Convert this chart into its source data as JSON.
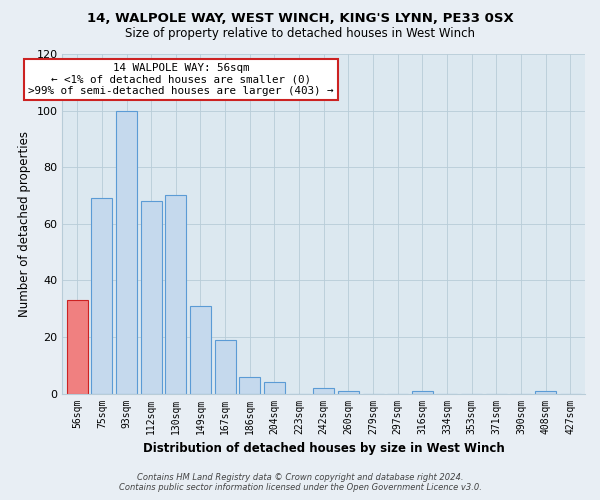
{
  "title_line1": "14, WALPOLE WAY, WEST WINCH, KING'S LYNN, PE33 0SX",
  "title_line2": "Size of property relative to detached houses in West Winch",
  "xlabel": "Distribution of detached houses by size in West Winch",
  "ylabel": "Number of detached properties",
  "bar_labels": [
    "56sqm",
    "75sqm",
    "93sqm",
    "112sqm",
    "130sqm",
    "149sqm",
    "167sqm",
    "186sqm",
    "204sqm",
    "223sqm",
    "242sqm",
    "260sqm",
    "279sqm",
    "297sqm",
    "316sqm",
    "334sqm",
    "353sqm",
    "371sqm",
    "390sqm",
    "408sqm",
    "427sqm"
  ],
  "bar_values": [
    33,
    69,
    100,
    68,
    70,
    31,
    19,
    6,
    4,
    0,
    2,
    1,
    0,
    0,
    1,
    0,
    0,
    0,
    0,
    1,
    0
  ],
  "bar_color": "#c5d9ed",
  "bar_edge_color": "#5b9bd5",
  "highlight_bar_index": 0,
  "highlight_bar_color": "#f08080",
  "highlight_bar_edge_color": "#cc2222",
  "annotation_line1": "14 WALPOLE WAY: 56sqm",
  "annotation_line2": "← <1% of detached houses are smaller (0)",
  "annotation_line3": ">99% of semi-detached houses are larger (403) →",
  "ylim": [
    0,
    120
  ],
  "yticks": [
    0,
    20,
    40,
    60,
    80,
    100,
    120
  ],
  "footer_line1": "Contains HM Land Registry data © Crown copyright and database right 2024.",
  "footer_line2": "Contains public sector information licensed under the Open Government Licence v3.0.",
  "background_color": "#e8eef4",
  "plot_background_color": "#dce8f0",
  "grid_color": "#b8ccd8",
  "ann_box_edge_color": "#cc2222",
  "ann_box_face_color": "#ffffff"
}
